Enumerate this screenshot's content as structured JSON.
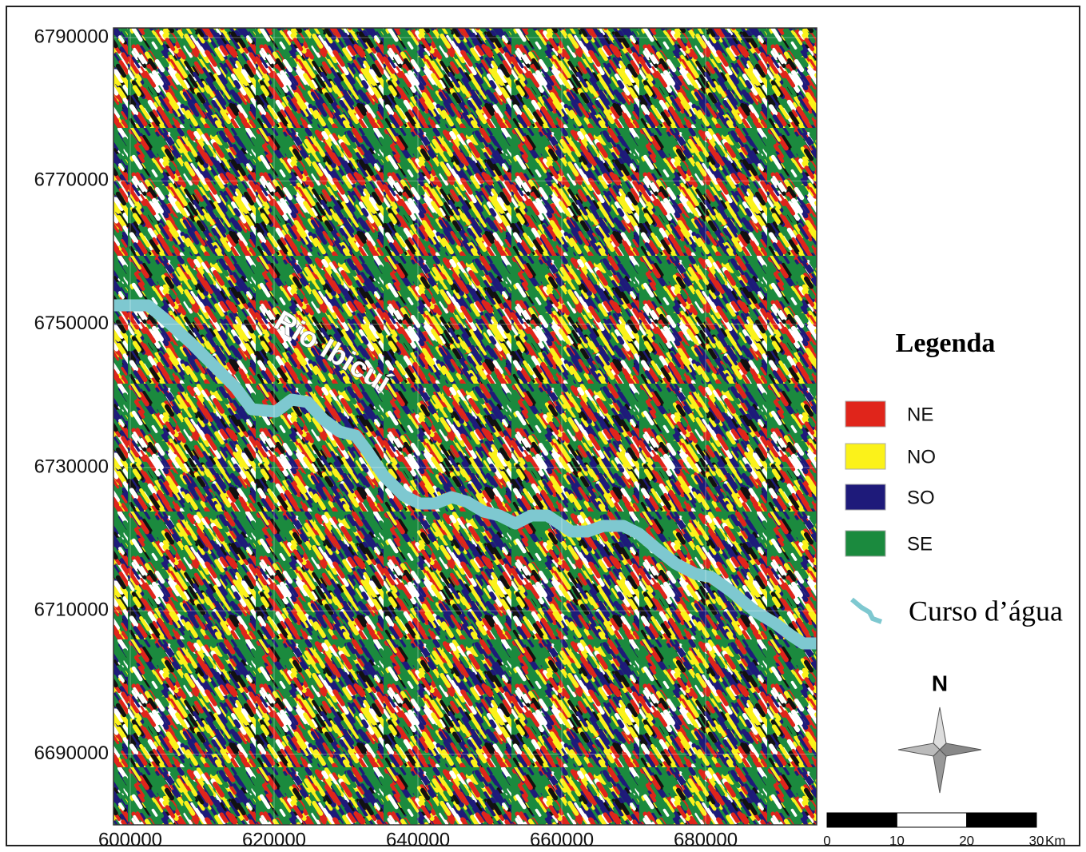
{
  "map": {
    "xlim": [
      597667,
      695444
    ],
    "ylim": [
      6680130,
      6791340
    ],
    "xticks": [
      600000,
      620000,
      640000,
      660000,
      680000
    ],
    "yticks": [
      6790000,
      6770000,
      6750000,
      6730000,
      6710000,
      6690000
    ],
    "river_label": "Rio Ibicuí",
    "legend": {
      "title": "Legenda",
      "items": [
        {
          "name": "NE",
          "color": "#e0251b"
        },
        {
          "name": "NO",
          "color": "#fbf21a"
        },
        {
          "name": "SO",
          "color": "#1e1a7a"
        },
        {
          "name": "SE",
          "color": "#1b8a3e"
        }
      ],
      "river": {
        "name": "Curso d’água",
        "color": "#7ec8d0"
      }
    },
    "north": "N",
    "scale": {
      "ticks": [
        0,
        10,
        20,
        30
      ],
      "unit": "Km"
    }
  }
}
